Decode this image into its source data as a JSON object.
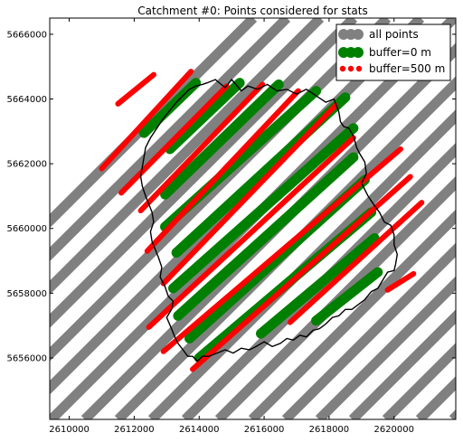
{
  "chart_data": {
    "type": "scatter",
    "title": "Catchment #0: Points considered for stats",
    "xlabel": "",
    "ylabel": "",
    "xlim": [
      2609400,
      2621900
    ],
    "ylim": [
      5654100,
      5666500
    ],
    "x_ticks": [
      "2610000",
      "2612000",
      "2614000",
      "2616000",
      "2618000",
      "2620000"
    ],
    "x_tick_values": [
      2610000,
      2612000,
      2614000,
      2616000,
      2618000,
      2620000
    ],
    "y_ticks": [
      "5656000",
      "5658000",
      "5660000",
      "5662000",
      "5664000",
      "5666000"
    ],
    "y_tick_values": [
      5656000,
      5658000,
      5660000,
      5662000,
      5664000,
      5666000
    ],
    "grid": false,
    "legend_position": "top-right",
    "legend": [
      {
        "label": "all points",
        "color": "#808080",
        "marker": "large-circle"
      },
      {
        "label": "buffer=0 m",
        "color": "#008000",
        "marker": "large-circle"
      },
      {
        "label": "buffer=500 m",
        "color": "#ff0000",
        "marker": "small-circle"
      }
    ],
    "series": [
      {
        "name": "all points",
        "color": "#808080",
        "track_spacing_x": 1030,
        "track_intercepts_x": [
          2603270,
          2604300,
          2605330,
          2606360,
          2607390,
          2608420,
          2609450,
          2610480,
          2611510,
          2612540,
          2613570,
          2614600,
          2615630,
          2616660,
          2617690,
          2618720,
          2619750,
          2620780,
          2621810
        ]
      },
      {
        "name": "buffer=0 m",
        "color": "#008000",
        "segments": [
          {
            "x": [
              2612300,
              2613900
            ],
            "y": [
              5662950,
              5664500
            ]
          },
          {
            "x": [
              2613100,
              2615250
            ],
            "y": [
              5662450,
              5664500
            ]
          },
          {
            "x": [
              2612950,
              2616450
            ],
            "y": [
              5661050,
              5664450
            ]
          },
          {
            "x": [
              2612950,
              2617600
            ],
            "y": [
              5660050,
              5664250
            ]
          },
          {
            "x": [
              2613300,
              2618500
            ],
            "y": [
              5659250,
              5664050
            ]
          },
          {
            "x": [
              2613200,
              2618750
            ],
            "y": [
              5658150,
              5663100
            ]
          },
          {
            "x": [
              2613350,
              2618750
            ],
            "y": [
              5657300,
              5662200
            ]
          },
          {
            "x": [
              2613700,
              2619100
            ],
            "y": [
              5656600,
              5661500
            ]
          },
          {
            "x": [
              2614000,
              2619300
            ],
            "y": [
              5656000,
              5660500
            ]
          },
          {
            "x": [
              2615900,
              2619400
            ],
            "y": [
              5656750,
              5659700
            ]
          },
          {
            "x": [
              2617600,
              2619500
            ],
            "y": [
              5657150,
              5658650
            ]
          }
        ]
      },
      {
        "name": "buffer=500 m",
        "color": "#ff0000",
        "segments": [
          {
            "x": [
              2611500,
              2612600
            ],
            "y": [
              5663850,
              5664750
            ]
          },
          {
            "x": [
              2611000,
              2613750
            ],
            "y": [
              5661850,
              5664850
            ]
          },
          {
            "x": [
              2611600,
              2614850
            ],
            "y": [
              5661100,
              5664400
            ]
          },
          {
            "x": [
              2612200,
              2615950
            ],
            "y": [
              5660550,
              5664450
            ]
          },
          {
            "x": [
              2612400,
              2617050
            ],
            "y": [
              5659300,
              5664250
            ]
          },
          {
            "x": [
              2612900,
              2618200
            ],
            "y": [
              5658300,
              5663800
            ]
          },
          {
            "x": [
              2612450,
              2618750
            ],
            "y": [
              5656950,
              5662800
            ]
          },
          {
            "x": [
              2612900,
              2620200
            ],
            "y": [
              5656200,
              5662450
            ]
          },
          {
            "x": [
              2613800,
              2620500
            ],
            "y": [
              5655650,
              5661600
            ]
          },
          {
            "x": [
              2616800,
              2620850
            ],
            "y": [
              5657100,
              5660800
            ]
          },
          {
            "x": [
              2619800,
              2620600
            ],
            "y": [
              5658100,
              5658600
            ]
          }
        ]
      }
    ],
    "catchment_boundary": {
      "color": "#000000",
      "x": [
        2614250,
        2614500,
        2614800,
        2615000,
        2615300,
        2615500,
        2615800,
        2616100,
        2616400,
        2616700,
        2617000,
        2617300,
        2617600,
        2617900,
        2618150,
        2618300,
        2618350,
        2618450,
        2618600,
        2618750,
        2618850,
        2618950,
        2619100,
        2619150,
        2619000,
        2619200,
        2619400,
        2619550,
        2619700,
        2619900,
        2620000,
        2620000,
        2620100,
        2620050,
        2620000,
        2619800,
        2619650,
        2619500,
        2619300,
        2619100,
        2618900,
        2618700,
        2618500,
        2618300,
        2618100,
        2617900,
        2617700,
        2617500,
        2617300,
        2617100,
        2616900,
        2616700,
        2616500,
        2616250,
        2616000,
        2615750,
        2615550,
        2615300,
        2615050,
        2614800,
        2614550,
        2614300,
        2614100,
        2613950,
        2613800,
        2613650,
        2613500,
        2613350,
        2613250,
        2613150,
        2613000,
        2613150,
        2613200,
        2613050,
        2612950,
        2612800,
        2612850,
        2612750,
        2612650,
        2612550,
        2612500,
        2612600,
        2612550,
        2612450,
        2612350,
        2612250,
        2612200,
        2612250,
        2612300,
        2612350,
        2612500,
        2612700,
        2612900,
        2613100,
        2613300,
        2613500,
        2613700,
        2613900,
        2614100,
        2614250
      ],
      "y": [
        5664500,
        5664600,
        5664350,
        5664600,
        5664250,
        5664400,
        5664300,
        5664450,
        5664250,
        5664300,
        5664150,
        5664300,
        5664100,
        5663900,
        5664000,
        5663600,
        5663300,
        5663150,
        5663100,
        5662850,
        5662500,
        5662300,
        5662050,
        5661700,
        5661400,
        5661000,
        5660700,
        5660500,
        5660200,
        5660100,
        5659800,
        5659500,
        5659200,
        5658900,
        5658700,
        5658650,
        5658400,
        5658150,
        5658050,
        5657800,
        5657650,
        5657500,
        5657500,
        5657300,
        5657250,
        5657050,
        5656900,
        5656850,
        5656650,
        5656700,
        5656550,
        5656600,
        5656450,
        5656350,
        5656500,
        5656350,
        5656250,
        5656300,
        5656150,
        5656250,
        5656150,
        5656050,
        5656050,
        5655900,
        5656050,
        5656050,
        5656250,
        5656450,
        5656650,
        5656900,
        5657250,
        5657500,
        5657750,
        5657900,
        5658200,
        5658500,
        5658800,
        5659100,
        5659350,
        5659600,
        5659900,
        5660200,
        5660500,
        5660750,
        5661000,
        5661300,
        5661600,
        5661900,
        5662200,
        5662500,
        5662800,
        5663100,
        5663400,
        5663650,
        5663900,
        5664100,
        5664300,
        5664400,
        5664450,
        5664500
      ]
    }
  }
}
